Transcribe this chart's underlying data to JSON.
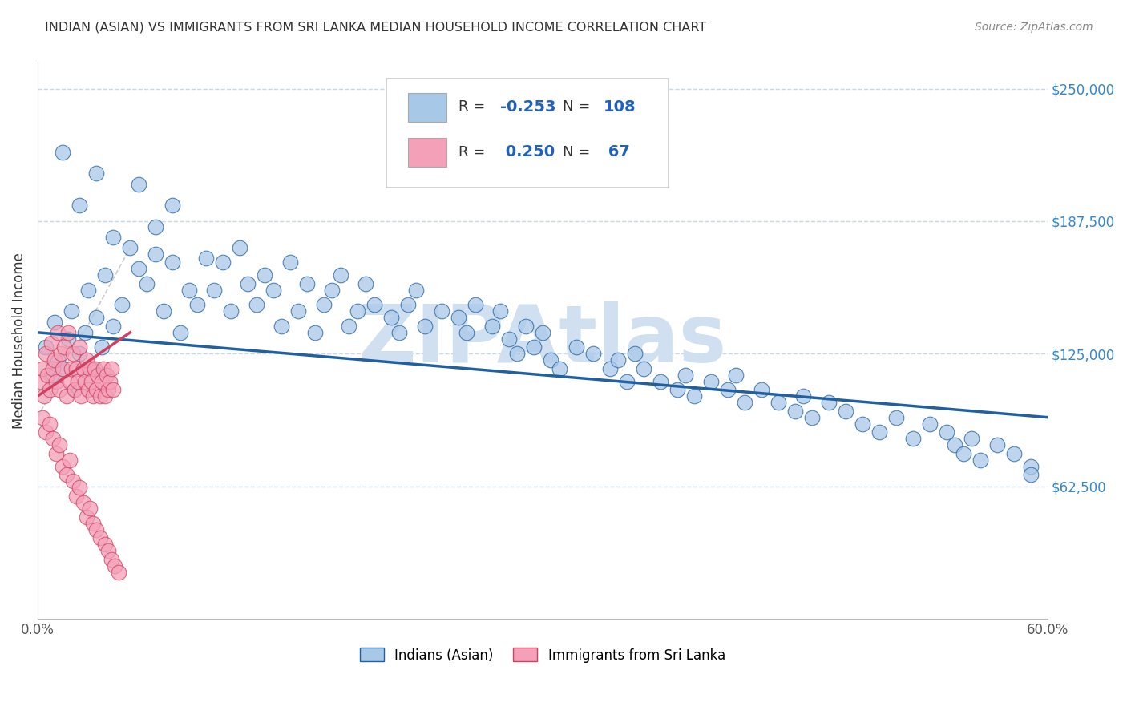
{
  "title": "INDIAN (ASIAN) VS IMMIGRANTS FROM SRI LANKA MEDIAN HOUSEHOLD INCOME CORRELATION CHART",
  "source": "Source: ZipAtlas.com",
  "ylabel": "Median Household Income",
  "xlim": [
    0.0,
    0.6
  ],
  "ylim": [
    0,
    262500
  ],
  "xticks": [
    0.0,
    0.1,
    0.2,
    0.3,
    0.4,
    0.5,
    0.6
  ],
  "xticklabels": [
    "0.0%",
    "",
    "",
    "",
    "",
    "",
    "60.0%"
  ],
  "yticks": [
    62500,
    125000,
    187500,
    250000
  ],
  "yticklabels": [
    "$62,500",
    "$125,000",
    "$187,500",
    "$250,000"
  ],
  "blue_color": "#A8C8E8",
  "pink_color": "#F4A0B8",
  "blue_line_color": "#2060A0",
  "pink_line_color": "#D04060",
  "watermark": "ZIPAtlas",
  "watermark_color": "#D0E0F0",
  "background_color": "#FFFFFF",
  "grid_color": "#C8D8E8",
  "blue_trend_x0": 0.0,
  "blue_trend_y0": 135000,
  "blue_trend_x1": 0.6,
  "blue_trend_y1": 95000,
  "pink_trend_x0": 0.0,
  "pink_trend_y0": 105000,
  "pink_trend_x1": 0.055,
  "pink_trend_y1": 135000,
  "indianAsianX": [
    0.005,
    0.008,
    0.01,
    0.012,
    0.015,
    0.018,
    0.02,
    0.022,
    0.025,
    0.028,
    0.03,
    0.032,
    0.035,
    0.038,
    0.04,
    0.045,
    0.05,
    0.055,
    0.06,
    0.065,
    0.07,
    0.075,
    0.08,
    0.085,
    0.09,
    0.095,
    0.1,
    0.105,
    0.11,
    0.115,
    0.12,
    0.125,
    0.13,
    0.135,
    0.14,
    0.145,
    0.15,
    0.155,
    0.16,
    0.165,
    0.17,
    0.175,
    0.18,
    0.185,
    0.19,
    0.195,
    0.2,
    0.21,
    0.215,
    0.22,
    0.225,
    0.23,
    0.24,
    0.25,
    0.255,
    0.26,
    0.27,
    0.275,
    0.28,
    0.285,
    0.29,
    0.295,
    0.3,
    0.305,
    0.31,
    0.32,
    0.33,
    0.34,
    0.345,
    0.35,
    0.355,
    0.36,
    0.37,
    0.38,
    0.385,
    0.39,
    0.4,
    0.41,
    0.415,
    0.42,
    0.43,
    0.44,
    0.45,
    0.455,
    0.46,
    0.47,
    0.48,
    0.49,
    0.5,
    0.51,
    0.52,
    0.53,
    0.54,
    0.545,
    0.55,
    0.555,
    0.56,
    0.57,
    0.58,
    0.59,
    0.015,
    0.025,
    0.035,
    0.045,
    0.06,
    0.07,
    0.08,
    0.59
  ],
  "indianAsianY": [
    128000,
    115000,
    140000,
    122000,
    118000,
    132000,
    145000,
    108000,
    125000,
    135000,
    155000,
    118000,
    142000,
    128000,
    162000,
    138000,
    148000,
    175000,
    165000,
    158000,
    172000,
    145000,
    168000,
    135000,
    155000,
    148000,
    170000,
    155000,
    168000,
    145000,
    175000,
    158000,
    148000,
    162000,
    155000,
    138000,
    168000,
    145000,
    158000,
    135000,
    148000,
    155000,
    162000,
    138000,
    145000,
    158000,
    148000,
    142000,
    135000,
    148000,
    155000,
    138000,
    145000,
    142000,
    135000,
    148000,
    138000,
    145000,
    132000,
    125000,
    138000,
    128000,
    135000,
    122000,
    118000,
    128000,
    125000,
    118000,
    122000,
    112000,
    125000,
    118000,
    112000,
    108000,
    115000,
    105000,
    112000,
    108000,
    115000,
    102000,
    108000,
    102000,
    98000,
    105000,
    95000,
    102000,
    98000,
    92000,
    88000,
    95000,
    85000,
    92000,
    88000,
    82000,
    78000,
    85000,
    75000,
    82000,
    78000,
    72000,
    220000,
    195000,
    210000,
    180000,
    205000,
    185000,
    195000,
    68000
  ],
  "sriLankaX": [
    0.002,
    0.003,
    0.004,
    0.005,
    0.006,
    0.007,
    0.008,
    0.009,
    0.01,
    0.011,
    0.012,
    0.013,
    0.014,
    0.015,
    0.016,
    0.017,
    0.018,
    0.019,
    0.02,
    0.021,
    0.022,
    0.023,
    0.024,
    0.025,
    0.026,
    0.027,
    0.028,
    0.029,
    0.03,
    0.031,
    0.032,
    0.033,
    0.034,
    0.035,
    0.036,
    0.037,
    0.038,
    0.039,
    0.04,
    0.041,
    0.042,
    0.043,
    0.044,
    0.045,
    0.003,
    0.005,
    0.007,
    0.009,
    0.011,
    0.013,
    0.015,
    0.017,
    0.019,
    0.021,
    0.023,
    0.025,
    0.027,
    0.029,
    0.031,
    0.033,
    0.035,
    0.037,
    0.04,
    0.042,
    0.044,
    0.046,
    0.048
  ],
  "sriLankaY": [
    112000,
    118000,
    105000,
    125000,
    115000,
    108000,
    130000,
    118000,
    122000,
    112000,
    135000,
    108000,
    125000,
    118000,
    128000,
    105000,
    135000,
    112000,
    118000,
    125000,
    108000,
    118000,
    112000,
    128000,
    105000,
    118000,
    112000,
    122000,
    108000,
    118000,
    112000,
    105000,
    118000,
    108000,
    115000,
    105000,
    112000,
    118000,
    105000,
    115000,
    108000,
    112000,
    118000,
    108000,
    95000,
    88000,
    92000,
    85000,
    78000,
    82000,
    72000,
    68000,
    75000,
    65000,
    58000,
    62000,
    55000,
    48000,
    52000,
    45000,
    42000,
    38000,
    35000,
    32000,
    28000,
    25000,
    22000
  ]
}
